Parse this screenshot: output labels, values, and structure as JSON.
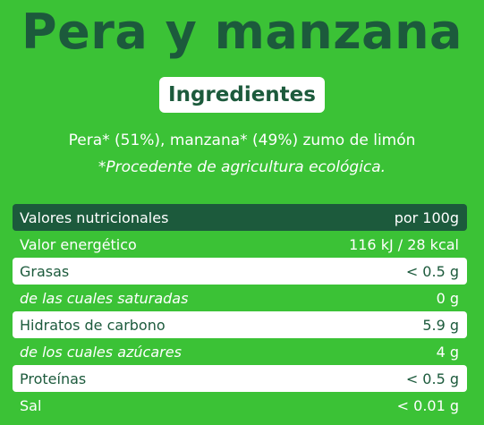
{
  "title": "Pera y manzana",
  "ingredients": {
    "heading": "Ingredientes",
    "text": "Pera* (51%), manzana* (49%)  zumo de limón",
    "note": "*Procedente de agricultura ecológica."
  },
  "nutrition": {
    "header": {
      "label": "Valores nutricionales",
      "value": "por 100g"
    },
    "rows": [
      {
        "label": "Valor energético",
        "value": "116 kJ / 28 kcal"
      },
      {
        "label": "Grasas",
        "value": "< 0.5 g"
      },
      {
        "label": "de las cuales saturadas",
        "value": "0 g"
      },
      {
        "label": "Hidratos de carbono",
        "value": "5.9 g"
      },
      {
        "label": "de los cuales azúcares",
        "value": "4 g"
      },
      {
        "label": "Proteínas",
        "value": "< 0.5 g"
      },
      {
        "label": "Sal",
        "value": "< 0.01 g"
      }
    ]
  },
  "colors": {
    "background": "#3bc236",
    "dark_green": "#1c5a3c",
    "white": "#ffffff"
  }
}
